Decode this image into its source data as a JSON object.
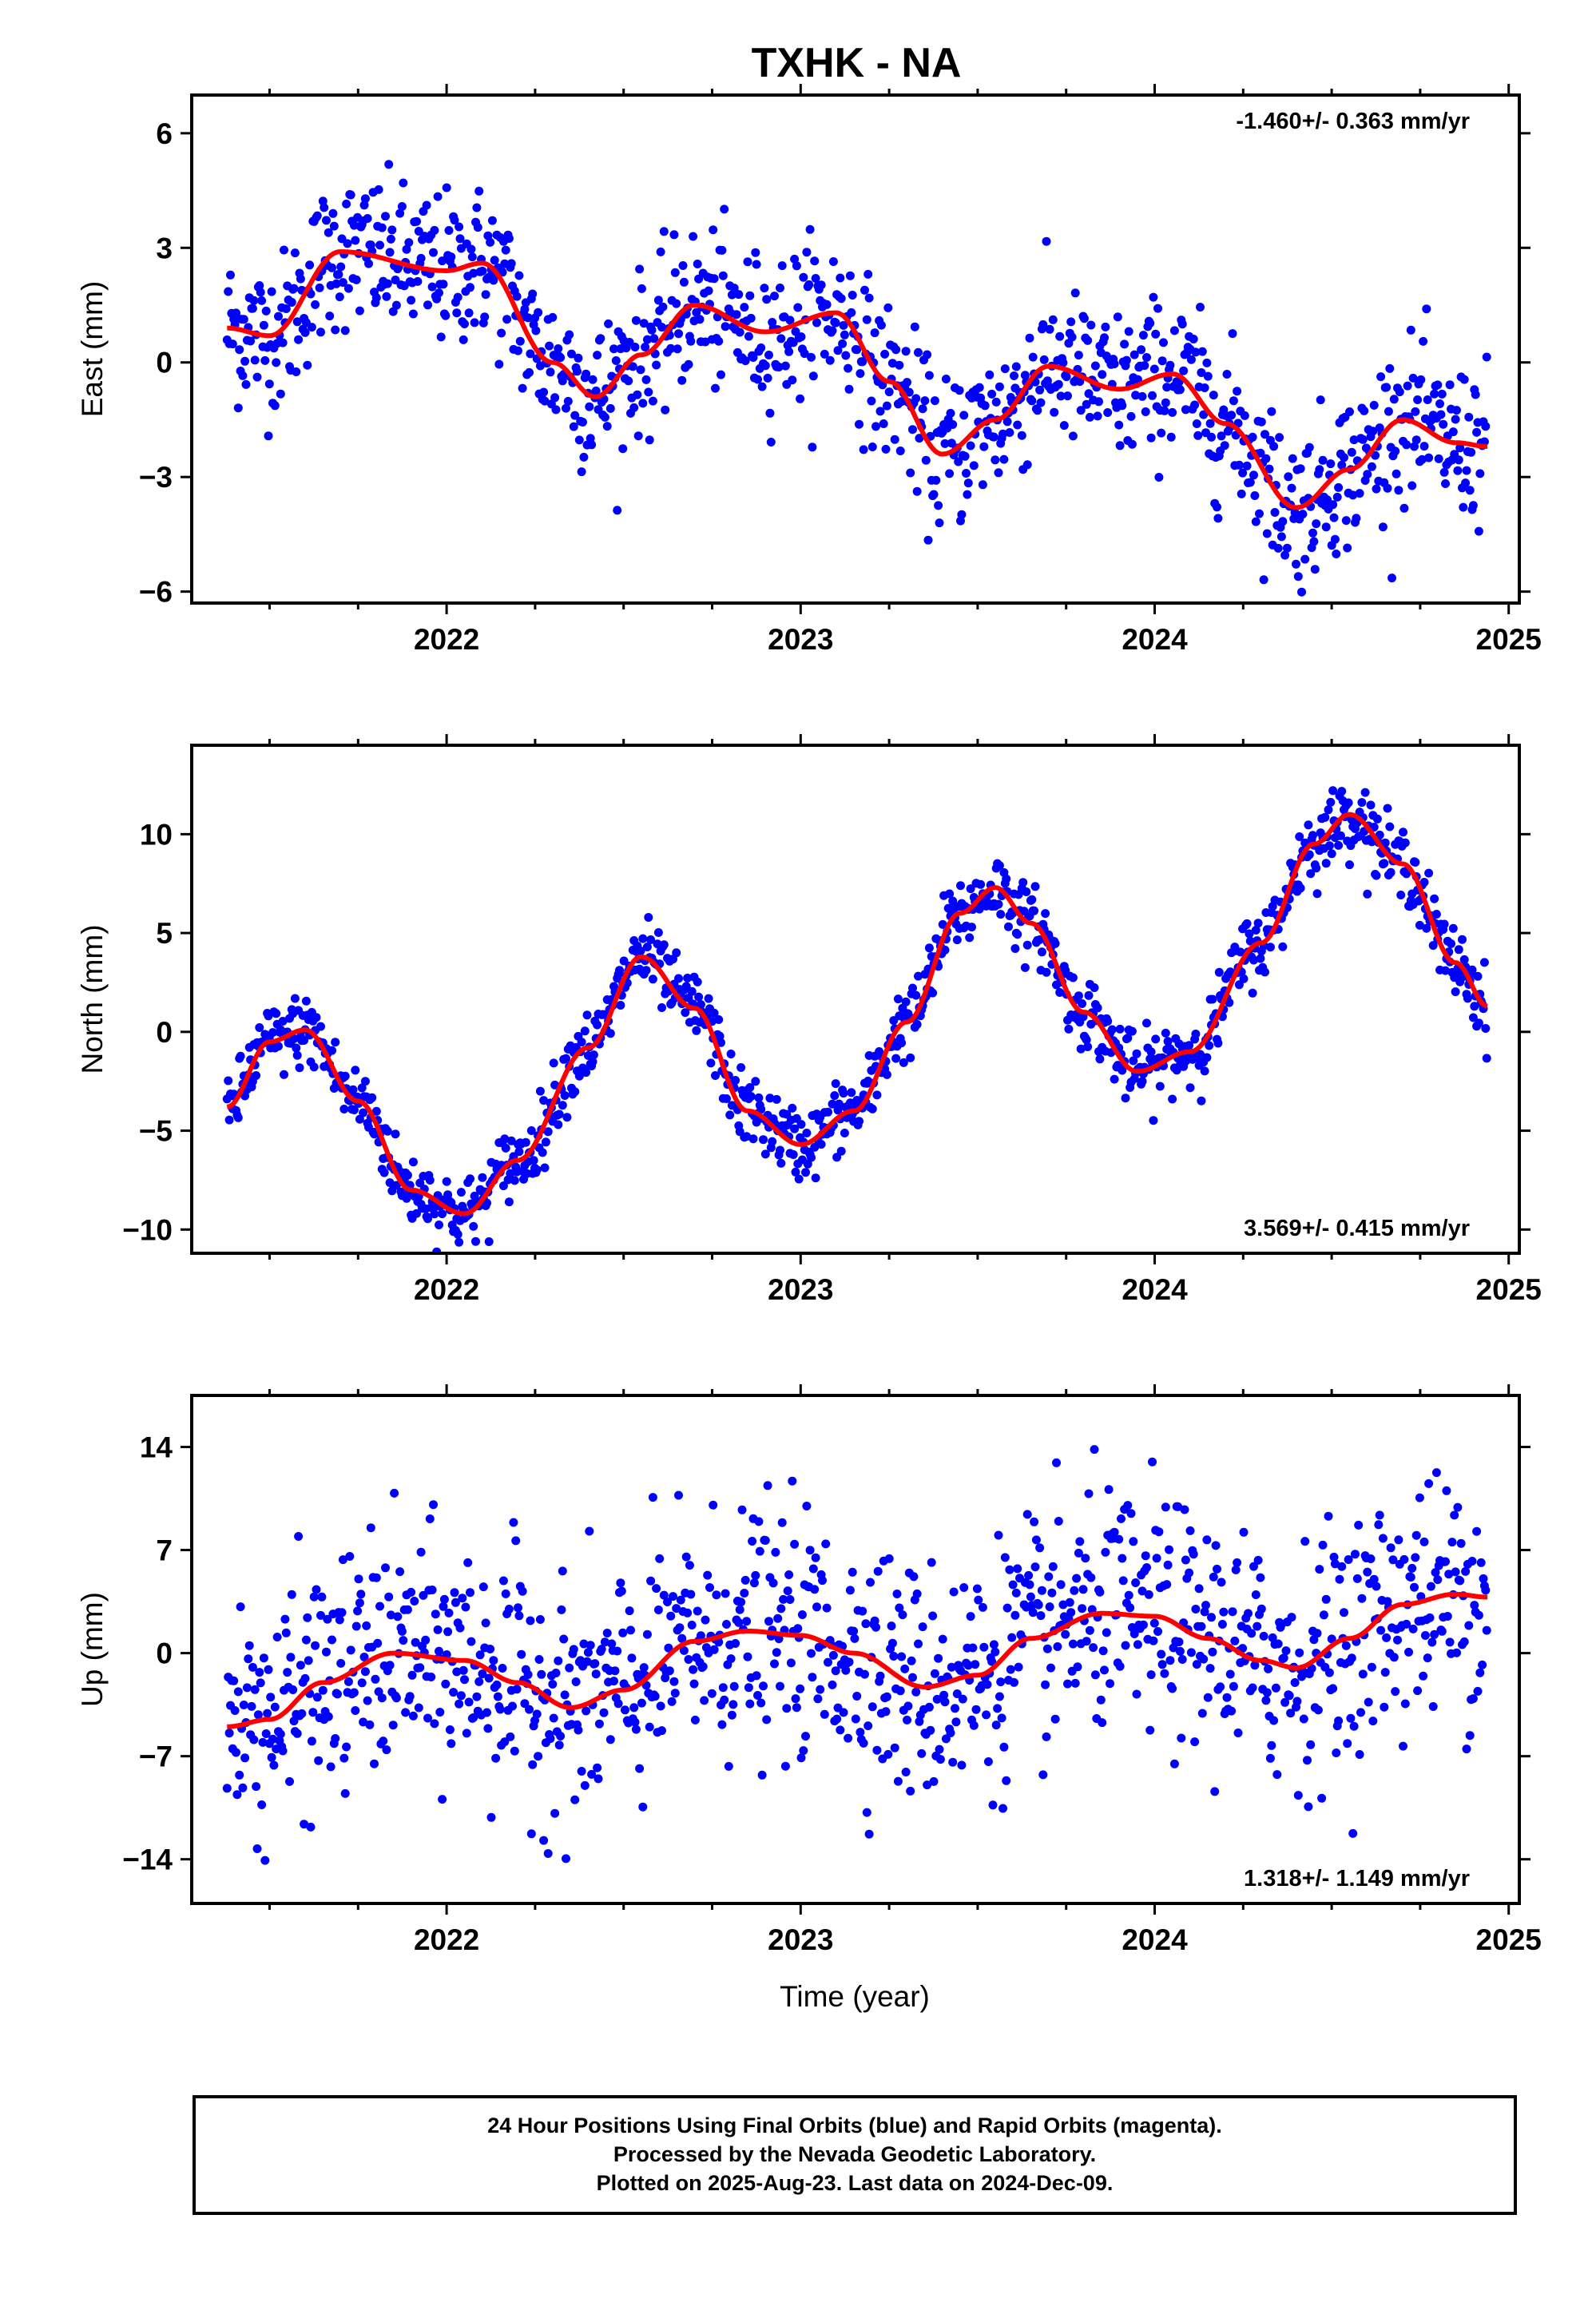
{
  "title": "TXHK - NA",
  "xlabel": "Time (year)",
  "footer": {
    "line1": "24 Hour Positions Using Final Orbits (blue) and Rapid Orbits (magenta).",
    "line2": "Processed by the Nevada Geodetic Laboratory.",
    "line3": "Plotted on 2025-Aug-23. Last data on 2024-Dec-09."
  },
  "colors": {
    "points": "#0000ff",
    "fit": "#ff0000",
    "axes": "#000000"
  },
  "chart_data": [
    {
      "type": "scatter",
      "name": "east",
      "ylabel": "East (mm)",
      "rate_text": "-1.460+/- 0.363 mm/yr",
      "rate_position": "top-right",
      "xlim": [
        2021.28,
        2025.03
      ],
      "ylim": [
        -6.3,
        7.0
      ],
      "x_ticks": [
        2022,
        2023,
        2024,
        2025
      ],
      "y_ticks": [
        -6,
        -3,
        0,
        3,
        6
      ],
      "x_start": 2021.38,
      "x_end": 2024.94,
      "scatter_sigma": 1.0,
      "fit_curve": {
        "x": [
          2021.38,
          2021.5,
          2021.7,
          2022.0,
          2022.1,
          2022.3,
          2022.42,
          2022.55,
          2022.7,
          2022.9,
          2023.1,
          2023.25,
          2023.4,
          2023.55,
          2023.7,
          2023.9,
          2024.05,
          2024.2,
          2024.4,
          2024.55,
          2024.7,
          2024.85,
          2024.94
        ],
        "y": [
          0.9,
          0.7,
          2.9,
          2.4,
          2.6,
          0.0,
          -0.9,
          0.2,
          1.5,
          0.8,
          1.3,
          -0.5,
          -2.4,
          -1.5,
          -0.1,
          -0.7,
          -0.3,
          -1.6,
          -3.8,
          -2.8,
          -1.5,
          -2.1,
          -2.2
        ]
      }
    },
    {
      "type": "scatter",
      "name": "north",
      "ylabel": "North (mm)",
      "rate_text": "3.569+/- 0.415 mm/yr",
      "rate_position": "bottom-right",
      "xlim": [
        2021.28,
        2025.03
      ],
      "ylim": [
        -11.2,
        14.5
      ],
      "x_ticks": [
        2022,
        2023,
        2024,
        2025
      ],
      "y_ticks": [
        -10,
        -5,
        0,
        5,
        10
      ],
      "x_start": 2021.38,
      "x_end": 2024.94,
      "scatter_sigma": 0.9,
      "fit_curve": {
        "x": [
          2021.38,
          2021.5,
          2021.6,
          2021.75,
          2021.9,
          2022.05,
          2022.2,
          2022.4,
          2022.55,
          2022.7,
          2022.85,
          2023.0,
          2023.15,
          2023.3,
          2023.45,
          2023.55,
          2023.65,
          2023.8,
          2023.95,
          2024.1,
          2024.3,
          2024.45,
          2024.55,
          2024.7,
          2024.85,
          2024.94
        ],
        "y": [
          -3.8,
          -0.5,
          0.1,
          -3.5,
          -8.0,
          -9.2,
          -6.5,
          -0.8,
          3.8,
          1.2,
          -4.0,
          -5.7,
          -4.0,
          0.5,
          6.0,
          7.3,
          5.5,
          1.0,
          -2.0,
          -1.0,
          4.5,
          9.5,
          11.0,
          8.5,
          3.5,
          1.3
        ]
      }
    },
    {
      "type": "scatter",
      "name": "up",
      "ylabel": "Up (mm)",
      "rate_text": "1.318+/- 1.149 mm/yr",
      "rate_position": "bottom-right",
      "xlim": [
        2021.28,
        2025.03
      ],
      "ylim": [
        -17.0,
        17.5
      ],
      "x_ticks": [
        2022,
        2023,
        2024,
        2025
      ],
      "y_ticks": [
        -14,
        -7,
        0,
        7,
        14
      ],
      "x_start": 2021.38,
      "x_end": 2024.94,
      "scatter_sigma": 4.0,
      "fit_curve": {
        "x": [
          2021.38,
          2021.5,
          2021.65,
          2021.85,
          2022.05,
          2022.2,
          2022.35,
          2022.5,
          2022.7,
          2022.85,
          2023.0,
          2023.15,
          2023.35,
          2023.5,
          2023.65,
          2023.85,
          2024.0,
          2024.15,
          2024.3,
          2024.4,
          2024.55,
          2024.7,
          2024.85,
          2024.94
        ],
        "y": [
          -5.0,
          -4.5,
          -2.0,
          0.0,
          -0.5,
          -2.0,
          -3.7,
          -2.5,
          0.8,
          1.5,
          1.2,
          0.0,
          -2.3,
          -1.5,
          1.0,
          2.7,
          2.5,
          1.0,
          -0.5,
          -1.0,
          1.0,
          3.3,
          4.0,
          3.8
        ]
      }
    }
  ]
}
